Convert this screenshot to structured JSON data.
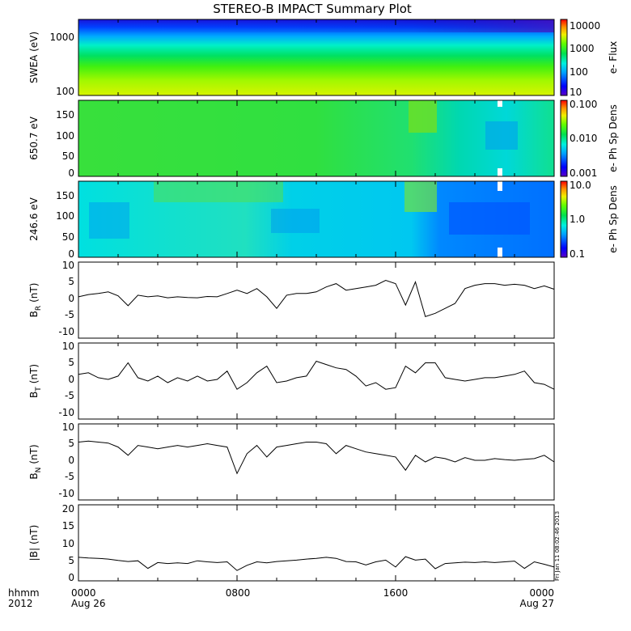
{
  "title": "STEREO-B IMPACT Summary Plot",
  "footer": {
    "row_label_1": "hhmm",
    "row_label_2": "2012",
    "date_start": "Aug 26",
    "date_end": "Aug 27",
    "time_ticks": [
      "0000",
      "0800",
      "1600",
      "0000"
    ]
  },
  "stamp": "Fri Jan 11 08:02:46 2013",
  "chart_data": [
    {
      "type": "heatmap",
      "ylabel": "SWEA (eV)",
      "yscale": "log",
      "ylim": [
        90,
        2000
      ],
      "yticks": [
        "1000",
        "100"
      ],
      "colorbar": {
        "label": "e- Flux",
        "scale": "log",
        "ticks": [
          "10000",
          "1000",
          "100",
          "10"
        ]
      }
    },
    {
      "type": "heatmap",
      "ylabel": "650.7 eV",
      "ylim": [
        0,
        180
      ],
      "yticks": [
        "150",
        "100",
        "50",
        "0"
      ],
      "colorbar": {
        "label": "e- Ph Sp Dens",
        "scale": "log",
        "ticks": [
          "0.100",
          "0.010",
          "0.001"
        ]
      }
    },
    {
      "type": "heatmap",
      "ylabel": "246.6 eV",
      "ylim": [
        0,
        180
      ],
      "yticks": [
        "150",
        "100",
        "50",
        "0"
      ],
      "colorbar": {
        "label": "e- Ph Sp Dens",
        "scale": "log",
        "ticks": [
          "10.0",
          "1.0",
          "0.1"
        ]
      }
    },
    {
      "type": "line",
      "ylabel_main": "B",
      "ylabel_sub": "R",
      "ylabel_unit": "(nT)",
      "ylim": [
        -12,
        11
      ],
      "yticks": [
        "10",
        "5",
        "0",
        "-5",
        "-10"
      ],
      "x": [
        0,
        0.5,
        1,
        1.5,
        2,
        2.5,
        3,
        3.5,
        4,
        4.5,
        5,
        5.5,
        6,
        6.5,
        7,
        7.5,
        8,
        8.5,
        9,
        9.5,
        10,
        10.5,
        11,
        11.5,
        12,
        12.5,
        13,
        13.5,
        14,
        14.5,
        15,
        15.5,
        16,
        16.5,
        17,
        17.5,
        18,
        18.5,
        19,
        19.5,
        20,
        20.5,
        21,
        21.5,
        22,
        22.5,
        23,
        23.5,
        24
      ],
      "y": [
        0.5,
        1.2,
        1.5,
        2.0,
        0.8,
        -2.2,
        1.0,
        0.5,
        0.8,
        0.2,
        0.5,
        0.3,
        0.2,
        0.6,
        0.5,
        1.5,
        2.5,
        1.5,
        3.0,
        0.5,
        -3.0,
        1.0,
        1.5,
        1.5,
        2.0,
        3.5,
        4.5,
        2.5,
        3.0,
        3.5,
        4.0,
        5.5,
        4.5,
        -2.0,
        5.0,
        -5.5,
        -4.5,
        -3.0,
        -1.5,
        3.0,
        4.0,
        4.5,
        4.5,
        4.0,
        4.3,
        4.0,
        3.0,
        3.8,
        2.8
      ]
    },
    {
      "type": "line",
      "ylabel_main": "B",
      "ylabel_sub": "T",
      "ylabel_unit": "(nT)",
      "ylim": [
        -12,
        11
      ],
      "yticks": [
        "10",
        "5",
        "0",
        "-5",
        "-10"
      ],
      "x": [
        0,
        0.5,
        1,
        1.5,
        2,
        2.5,
        3,
        3.5,
        4,
        4.5,
        5,
        5.5,
        6,
        6.5,
        7,
        7.5,
        8,
        8.5,
        9,
        9.5,
        10,
        10.5,
        11,
        11.5,
        12,
        12.5,
        13,
        13.5,
        14,
        14.5,
        15,
        15.5,
        16,
        16.5,
        17,
        17.5,
        18,
        18.5,
        19,
        19.5,
        20,
        20.5,
        21,
        21.5,
        22,
        22.5,
        23,
        23.5,
        24
      ],
      "y": [
        1.5,
        2.0,
        0.5,
        0.0,
        1.0,
        5.0,
        0.5,
        -0.5,
        1.0,
        -1.0,
        0.5,
        -0.5,
        1.0,
        -0.5,
        0.0,
        2.5,
        -3.0,
        -1.0,
        2.0,
        4.0,
        -1.0,
        -0.5,
        0.5,
        1.0,
        5.5,
        4.5,
        3.5,
        3.0,
        1.0,
        -2.0,
        -1.0,
        -3.0,
        -2.5,
        4.0,
        2.0,
        5.0,
        5.0,
        0.5,
        0.0,
        -0.5,
        0.0,
        0.5,
        0.5,
        1.0,
        1.5,
        2.5,
        -1.0,
        -1.5,
        -3.0
      ]
    },
    {
      "type": "line",
      "ylabel_main": "B",
      "ylabel_sub": "N",
      "ylabel_unit": "(nT)",
      "ylim": [
        -12,
        11
      ],
      "yticks": [
        "10",
        "5",
        "0",
        "-5",
        "-10"
      ],
      "x": [
        0,
        0.5,
        1,
        1.5,
        2,
        2.5,
        3,
        3.5,
        4,
        4.5,
        5,
        5.5,
        6,
        6.5,
        7,
        7.5,
        8,
        8.5,
        9,
        9.5,
        10,
        10.5,
        11,
        11.5,
        12,
        12.5,
        13,
        13.5,
        14,
        14.5,
        15,
        15.5,
        16,
        16.5,
        17,
        17.5,
        18,
        18.5,
        19,
        19.5,
        20,
        20.5,
        21,
        21.5,
        22,
        22.5,
        23,
        23.5,
        24
      ],
      "y": [
        5.5,
        5.8,
        5.5,
        5.2,
        4.0,
        1.5,
        4.5,
        4.0,
        3.5,
        4.0,
        4.5,
        4.0,
        4.5,
        5.0,
        4.5,
        4.0,
        -4.0,
        2.0,
        4.5,
        1.0,
        4.0,
        4.5,
        5.0,
        5.5,
        5.5,
        5.0,
        2.0,
        4.5,
        3.5,
        2.5,
        2.0,
        1.5,
        1.0,
        -3.0,
        1.5,
        -0.5,
        1.0,
        0.5,
        -0.5,
        0.8,
        0.0,
        0.0,
        0.5,
        0.2,
        0.0,
        0.3,
        0.5,
        1.5,
        -0.5
      ]
    },
    {
      "type": "line",
      "ylabel_main": "|B|",
      "ylabel_unit": "(nT)",
      "ylim": [
        -1,
        21
      ],
      "yticks": [
        "20",
        "15",
        "10",
        "5",
        "0"
      ],
      "x": [
        0,
        0.5,
        1,
        1.5,
        2,
        2.5,
        3,
        3.5,
        4,
        4.5,
        5,
        5.5,
        6,
        6.5,
        7,
        7.5,
        8,
        8.5,
        9,
        9.5,
        10,
        10.5,
        11,
        11.5,
        12,
        12.5,
        13,
        13.5,
        14,
        14.5,
        15,
        15.5,
        16,
        16.5,
        17,
        17.5,
        18,
        18.5,
        19,
        19.5,
        20,
        20.5,
        21,
        21.5,
        22,
        22.5,
        23,
        23.5,
        24
      ],
      "y": [
        5.8,
        5.6,
        5.5,
        5.3,
        4.9,
        4.6,
        4.8,
        2.6,
        4.3,
        4.0,
        4.2,
        4.0,
        4.8,
        4.5,
        4.3,
        4.5,
        2.0,
        3.5,
        4.5,
        4.2,
        4.6,
        4.8,
        5.0,
        5.3,
        5.5,
        5.8,
        5.5,
        4.6,
        4.5,
        3.6,
        4.5,
        5.0,
        3.0,
        6.0,
        5.0,
        5.3,
        2.5,
        4.0,
        4.2,
        4.4,
        4.3,
        4.5,
        4.3,
        4.5,
        4.7,
        2.6,
        4.5,
        3.8,
        3.0
      ]
    }
  ]
}
